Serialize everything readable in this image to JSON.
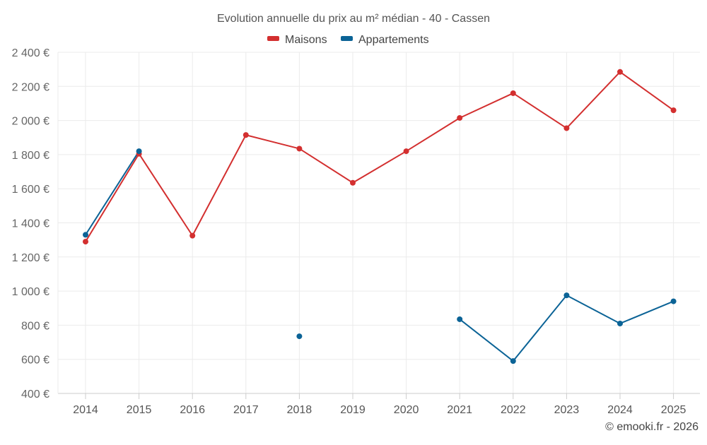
{
  "chart_data": {
    "type": "line",
    "title": "Evolution annuelle du prix au m² médian - 40 - Cassen",
    "x": [
      "2014",
      "2015",
      "2016",
      "2017",
      "2018",
      "2019",
      "2020",
      "2021",
      "2022",
      "2023",
      "2024",
      "2025"
    ],
    "series": [
      {
        "name": "Maisons",
        "color": "#d32f2f",
        "values": [
          1290,
          1805,
          1325,
          1915,
          1835,
          1635,
          1820,
          2015,
          2160,
          1955,
          2285,
          2060
        ]
      },
      {
        "name": "Appartements",
        "color": "#0b6396",
        "values": [
          1330,
          1820,
          null,
          null,
          735,
          null,
          null,
          835,
          590,
          975,
          810,
          940
        ]
      }
    ],
    "y_ticks": [
      "400 €",
      "600 €",
      "800 €",
      "1 000 €",
      "1 200 €",
      "1 400 €",
      "1 600 €",
      "1 800 €",
      "2 000 €",
      "2 200 €",
      "2 400 €"
    ],
    "ylim": [
      400,
      2400
    ],
    "xlabel": "",
    "ylabel": "",
    "grid": true,
    "legend_position": "top-center"
  },
  "credit": "© emooki.fr - 2026"
}
